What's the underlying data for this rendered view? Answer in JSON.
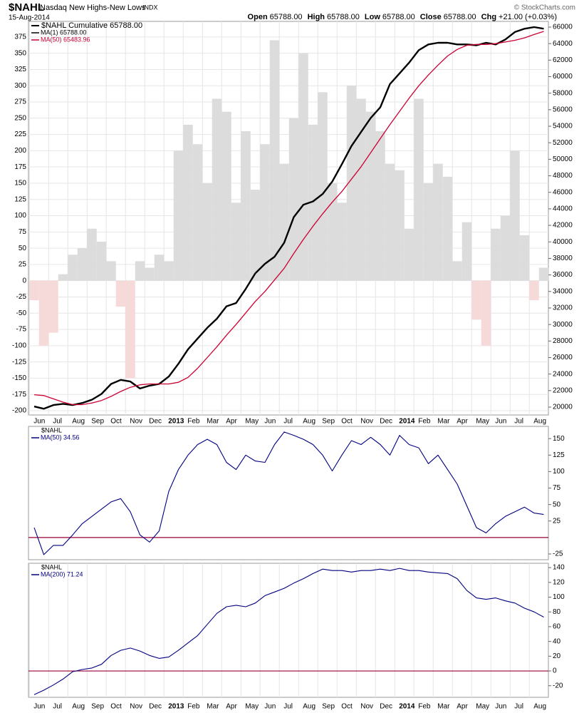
{
  "header": {
    "symbol": "$NAHL",
    "name": "Nasdaq New Highs-New Lows",
    "exchange": "INDX",
    "date": "15-Aug-2014",
    "copyright": "© StockCharts.com",
    "quote": [
      {
        "label": "Open",
        "value": "65788.00"
      },
      {
        "label": "High",
        "value": "65788.00"
      },
      {
        "label": "Low",
        "value": "65788.00"
      },
      {
        "label": "Close",
        "value": "65788.00"
      },
      {
        "label": "Chg",
        "value": "+21.00 (+0.03%)"
      }
    ]
  },
  "chart_data": [
    {
      "type": "line",
      "legend_title": "$NAHL Cumulative 65788.00",
      "legend": "top-left",
      "grid": true,
      "y_axis_side": "left",
      "categories": [
        "Jun",
        null,
        "Jul",
        null,
        "Aug",
        null,
        "Sep",
        null,
        "Oct",
        null,
        "Nov",
        null,
        "Dec",
        null,
        "2013",
        null,
        "Feb",
        null,
        "Mar",
        null,
        "Apr",
        null,
        "May",
        null,
        "Jun",
        null,
        "Jul",
        null,
        "Aug",
        null,
        "Sep",
        null,
        "Oct",
        null,
        "Nov",
        null,
        "Dec",
        null,
        "2014",
        null,
        "Feb",
        null,
        "Mar",
        null,
        "Apr",
        null,
        "May",
        null,
        "Jun",
        null,
        "Jul",
        null,
        "Aug",
        null
      ],
      "ylim": [
        -206.6,
        399
      ],
      "yticks": [
        -200,
        -175,
        -150,
        -125,
        -100,
        -75,
        -50,
        -25,
        0,
        25,
        50,
        75,
        100,
        125,
        150,
        175,
        200,
        225,
        250,
        275,
        300,
        325,
        350,
        375
      ],
      "y2lim": [
        19050,
        66690
      ],
      "y2ticks": [
        20000,
        22000,
        24000,
        26000,
        28000,
        30000,
        32000,
        34000,
        36000,
        38000,
        40000,
        42000,
        44000,
        46000,
        48000,
        50000,
        52000,
        54000,
        56000,
        58000,
        60000,
        62000,
        64000,
        66000
      ],
      "histogram": {
        "color": "#dcdcdc",
        "negative_color": "#f6dada",
        "values": [
          -30,
          -100,
          -80,
          10,
          40,
          50,
          80,
          60,
          30,
          -40,
          -150,
          30,
          20,
          40,
          30,
          200,
          240,
          210,
          150,
          280,
          260,
          120,
          230,
          140,
          210,
          370,
          180,
          250,
          350,
          240,
          290,
          150,
          120,
          300,
          280,
          260,
          230,
          180,
          170,
          80,
          280,
          150,
          180,
          160,
          30,
          90,
          -60,
          -100,
          80,
          100,
          200,
          70,
          -30,
          20
        ]
      },
      "series": [
        {
          "name": "MA(1) 65788.00",
          "color": "#000000",
          "axis": "y2",
          "width": 2.4,
          "values": [
            20080,
            19800,
            20250,
            20400,
            20250,
            20500,
            20900,
            21600,
            22800,
            23300,
            23100,
            22250,
            22600,
            22800,
            23700,
            25250,
            27000,
            28300,
            29600,
            30700,
            32200,
            32600,
            34300,
            36200,
            37350,
            38200,
            39900,
            43000,
            44500,
            44900,
            45800,
            47300,
            49400,
            51600,
            53300,
            55000,
            56300,
            59100,
            60400,
            61700,
            63200,
            63900,
            64100,
            64100,
            63900,
            63900,
            63800,
            64100,
            63900,
            64500,
            65400,
            65800,
            66000,
            65800
          ]
        },
        {
          "name": "MA(50) 65483.96",
          "color": "#cc0033",
          "axis": "y2",
          "width": 1.3,
          "values": [
            21500,
            21400,
            21000,
            20600,
            20300,
            20300,
            20500,
            20800,
            21300,
            21900,
            22400,
            22700,
            22800,
            22800,
            22800,
            23000,
            23600,
            24700,
            26000,
            27300,
            28700,
            30000,
            31400,
            32800,
            34000,
            35400,
            36800,
            38600,
            40300,
            41900,
            43400,
            44800,
            46100,
            47600,
            49100,
            50800,
            52500,
            54200,
            55800,
            57400,
            58900,
            60200,
            61400,
            62500,
            63300,
            63800,
            63900,
            63900,
            64000,
            64200,
            64400,
            64700,
            65100,
            65480
          ]
        }
      ]
    },
    {
      "type": "line",
      "legend_title": "$NAHL",
      "legend": "top-left",
      "y_axis_side": "right",
      "reference_line": {
        "value": 0,
        "color": "#99003a"
      },
      "ylim": [
        -33.7,
        168.6
      ],
      "yticks": [
        -25,
        25,
        50,
        75,
        100,
        125,
        150
      ],
      "series": [
        {
          "name": "MA(50) 34.56",
          "color": "#000080",
          "width": 1.1,
          "values": [
            15,
            -26,
            -12,
            -12,
            4,
            21,
            32,
            43,
            54,
            59,
            39,
            4,
            -7,
            10,
            70,
            103,
            125,
            141,
            149,
            141,
            114,
            103,
            125,
            116,
            114,
            141,
            160,
            155,
            149,
            141,
            125,
            101,
            125,
            147,
            141,
            152,
            141,
            125,
            155,
            141,
            136,
            112,
            125,
            103,
            81,
            48,
            15,
            7,
            21,
            32,
            39,
            46,
            37,
            35
          ]
        }
      ]
    },
    {
      "type": "line",
      "legend_title": "$NAHL",
      "legend": "top-left",
      "y_axis_side": "right",
      "reference_line": {
        "value": 0,
        "color": "#99003a"
      },
      "categories": [
        "Jun",
        null,
        "Jul",
        null,
        "Aug",
        null,
        "Sep",
        null,
        "Oct",
        null,
        "Nov",
        null,
        "Dec",
        null,
        "2013",
        null,
        "Feb",
        null,
        "Mar",
        null,
        "Apr",
        null,
        "May",
        null,
        "Jun",
        null,
        "Jul",
        null,
        "Aug",
        null,
        "Sep",
        null,
        "Oct",
        null,
        "Nov",
        null,
        "Dec",
        null,
        "2014",
        null,
        "Feb",
        null,
        "Mar",
        null,
        "Apr",
        null,
        "May",
        null,
        "Jun",
        null,
        "Jul",
        null,
        "Aug",
        null
      ],
      "ylim": [
        -35.7,
        145.9
      ],
      "yticks": [
        -20,
        0,
        20,
        40,
        60,
        80,
        100,
        120,
        140
      ],
      "series": [
        {
          "name": "MA(200) 71.24",
          "color": "#000080",
          "width": 1.1,
          "values": [
            -32,
            -26,
            -19,
            -11,
            -1,
            2,
            4,
            9,
            21,
            28,
            31,
            27,
            21,
            17,
            19,
            28,
            38,
            48,
            63,
            78,
            87,
            89,
            87,
            92,
            102,
            107,
            112,
            119,
            125,
            132,
            138,
            136,
            136,
            134,
            136,
            136,
            138,
            136,
            139,
            136,
            136,
            134,
            133,
            132,
            125,
            109,
            99,
            97,
            99,
            95,
            92,
            85,
            80,
            73
          ]
        }
      ]
    }
  ]
}
